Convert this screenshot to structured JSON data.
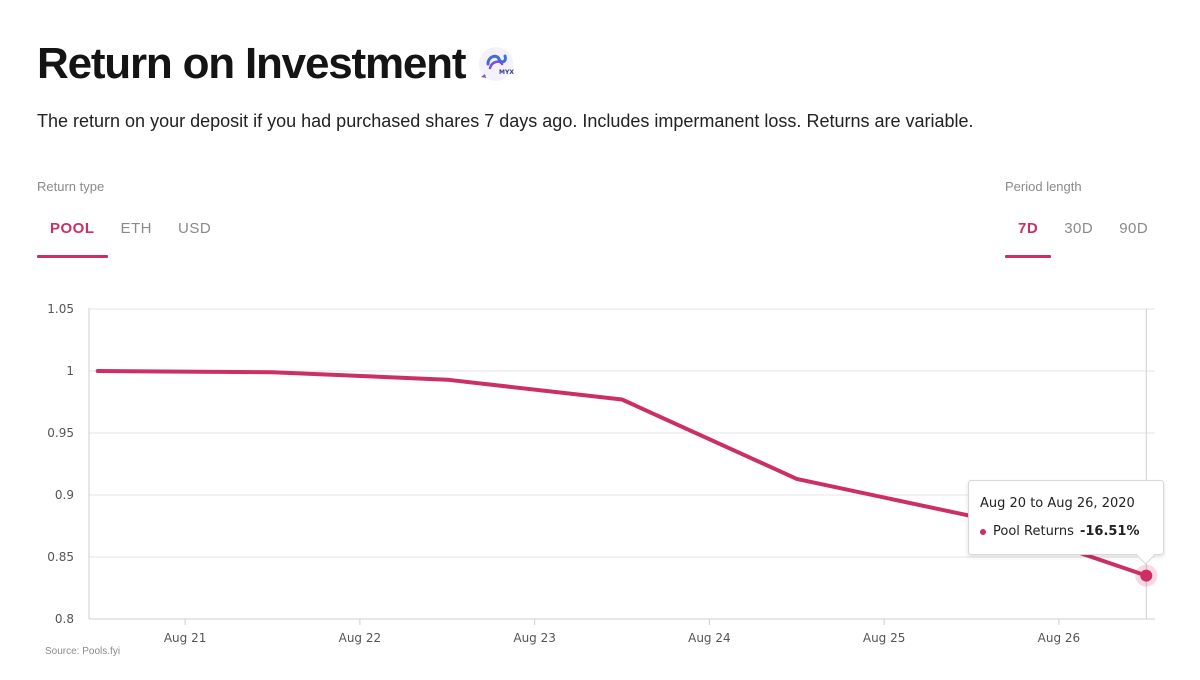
{
  "header": {
    "title": "Return on Investment",
    "logo_text": "MYX",
    "subtitle": "The return on your deposit if you had purchased shares 7 days ago. Includes impermanent loss. Returns are variable."
  },
  "return_type": {
    "label": "Return type",
    "tabs": [
      "POOL",
      "ETH",
      "USD"
    ],
    "active": "POOL"
  },
  "period_length": {
    "label": "Period length",
    "tabs": [
      "7D",
      "30D",
      "90D"
    ],
    "active": "7D"
  },
  "source": "Source: Pools.fyi",
  "tooltip": {
    "date_range": "Aug 20 to Aug 26, 2020",
    "series_label": "Pool Returns",
    "value": "-16.51%"
  },
  "colors": {
    "accent": "#cc2e66",
    "grid": "#e6e6e6",
    "axis_text": "#555555"
  },
  "chart_data": {
    "type": "line",
    "x": [
      "Aug 20.5",
      "Aug 21.5",
      "Aug 22.5",
      "Aug 23.5",
      "Aug 24.5",
      "Aug 25.5",
      "Aug 26.5"
    ],
    "x_days": [
      20.5,
      21.5,
      22.5,
      23.5,
      24.5,
      25.5,
      26.5
    ],
    "series": [
      {
        "name": "Pool Returns",
        "values": [
          1.0,
          0.999,
          0.993,
          0.977,
          0.913,
          0.883,
          0.835
        ]
      }
    ],
    "x_ticks": [
      {
        "day": 21,
        "label": "Aug 21"
      },
      {
        "day": 22,
        "label": "Aug 22"
      },
      {
        "day": 23,
        "label": "Aug 23"
      },
      {
        "day": 24,
        "label": "Aug 24"
      },
      {
        "day": 25,
        "label": "Aug 25"
      },
      {
        "day": 26,
        "label": "Aug 26"
      }
    ],
    "y_ticks": [
      {
        "value": 1.05,
        "label": "1.05"
      },
      {
        "value": 1.0,
        "label": "1"
      },
      {
        "value": 0.95,
        "label": "0.95"
      },
      {
        "value": 0.9,
        "label": "0.9"
      },
      {
        "value": 0.85,
        "label": "0.85"
      },
      {
        "value": 0.8,
        "label": "0.8"
      }
    ],
    "xlim": [
      20.45,
      26.55
    ],
    "ylim": [
      0.8,
      1.05
    ],
    "grid": true,
    "highlight_index": 6
  }
}
